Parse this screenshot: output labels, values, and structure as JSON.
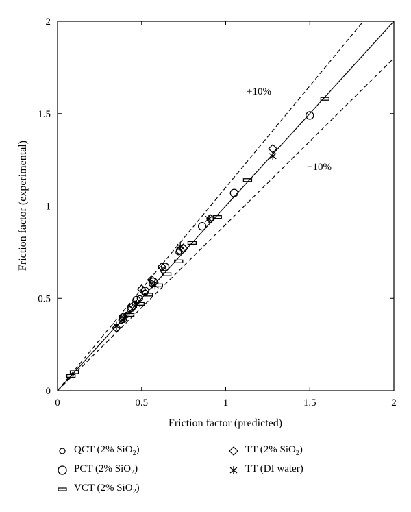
{
  "chart_data": {
    "type": "scatter",
    "xlabel": "Friction factor (predicted)",
    "ylabel": "Friction factor (experimental)",
    "xlim": [
      0,
      2
    ],
    "ylim": [
      0,
      2
    ],
    "xticks": [
      "0",
      "0.5",
      "1",
      "1.5",
      "2"
    ],
    "yticks": [
      "0",
      "0.5",
      "1",
      "1.5",
      "2"
    ],
    "annotations": [
      {
        "text": "+10%"
      },
      {
        "text": "−10%"
      }
    ],
    "reference_lines": [
      {
        "name": "y = x",
        "slope": 1.0,
        "style": "solid"
      },
      {
        "name": "+10%",
        "slope": 1.1,
        "style": "dashed"
      },
      {
        "name": "-10%",
        "slope": 0.9,
        "style": "dashed"
      }
    ],
    "series": [
      {
        "name": "QCT (2% SiO2)",
        "label_main": "QCT (2% SiO",
        "label_sub": "2",
        "label_end": ")",
        "marker": "circle-small",
        "points": [
          [
            0.38,
            0.38
          ],
          [
            0.41,
            0.41
          ],
          [
            0.43,
            0.44
          ],
          [
            0.46,
            0.47
          ],
          [
            0.49,
            0.5
          ],
          [
            0.52,
            0.53
          ],
          [
            0.56,
            0.58
          ],
          [
            0.63,
            0.65
          ],
          [
            0.72,
            0.75
          ]
        ]
      },
      {
        "name": "PCT (2% SiO2)",
        "label_main": "PCT (2% SiO",
        "label_sub": "2",
        "label_end": ")",
        "marker": "circle-large",
        "points": [
          [
            0.39,
            0.39
          ],
          [
            0.44,
            0.45
          ],
          [
            0.47,
            0.49
          ],
          [
            0.52,
            0.54
          ],
          [
            0.57,
            0.59
          ],
          [
            0.64,
            0.67
          ],
          [
            0.73,
            0.76
          ],
          [
            0.86,
            0.89
          ],
          [
            1.05,
            1.07
          ],
          [
            1.5,
            1.49
          ]
        ]
      },
      {
        "name": "VCT (2% SiO2)",
        "label_main": "VCT (2% SiO",
        "label_sub": "2",
        "label_end": ")",
        "marker": "dash",
        "points": [
          [
            0.08,
            0.08
          ],
          [
            0.1,
            0.1
          ],
          [
            0.43,
            0.41
          ],
          [
            0.49,
            0.47
          ],
          [
            0.54,
            0.52
          ],
          [
            0.6,
            0.57
          ],
          [
            0.65,
            0.63
          ],
          [
            0.72,
            0.7
          ],
          [
            0.8,
            0.8
          ],
          [
            0.95,
            0.94
          ],
          [
            1.13,
            1.14
          ],
          [
            1.59,
            1.58
          ]
        ]
      },
      {
        "name": "TT (2% SiO2)",
        "label_main": "TT (2% SiO",
        "label_sub": "2",
        "label_end": ")",
        "marker": "diamond",
        "points": [
          [
            0.35,
            0.34
          ],
          [
            0.39,
            0.4
          ],
          [
            0.45,
            0.46
          ],
          [
            0.5,
            0.55
          ],
          [
            0.56,
            0.6
          ],
          [
            0.62,
            0.67
          ],
          [
            0.75,
            0.77
          ],
          [
            0.91,
            0.93
          ],
          [
            1.28,
            1.31
          ]
        ]
      },
      {
        "name": "TT (DI water)",
        "label_main": "TT (DI water)",
        "label_sub": "",
        "label_end": "",
        "marker": "asterisk",
        "points": [
          [
            0.35,
            0.35
          ],
          [
            0.4,
            0.39
          ],
          [
            0.47,
            0.47
          ],
          [
            0.58,
            0.57
          ],
          [
            0.73,
            0.78
          ],
          [
            0.9,
            0.93
          ],
          [
            1.28,
            1.27
          ]
        ]
      }
    ]
  }
}
